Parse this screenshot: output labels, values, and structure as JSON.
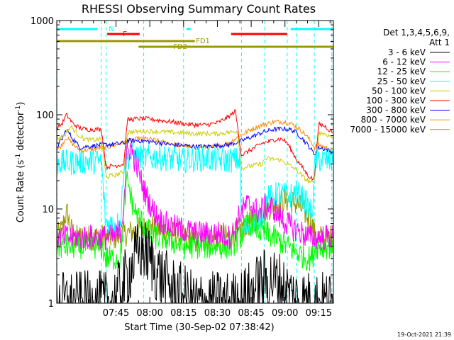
{
  "chart_data": {
    "type": "line",
    "title": "RHESSI Observing Summary Count Rates",
    "xlabel": "Start Time (30-Sep-02 07:38:42)",
    "ylabel_main": "Count Rate (s",
    "ylabel_exp1": "-1",
    "ylabel_mid": " detector",
    "ylabel_exp2": "-1",
    "ylabel_end": ")",
    "yscale": "log",
    "ylim": [
      1,
      1000
    ],
    "xlim_minutes": [
      -21.3,
      101.5
    ],
    "x_ticks": [
      "07:45",
      "08:00",
      "08:15",
      "08:30",
      "08:45",
      "09:00",
      "09:15"
    ],
    "y_ticks": [
      "1",
      "10",
      "100",
      "1000"
    ],
    "legend_header": [
      "Det 1,3,4,5,6,9,",
      "Att 1"
    ],
    "legend_position": "right",
    "timestamp": "19-Oct-2021 21:39",
    "flags": [
      {
        "label": "N",
        "color": "#00ffff",
        "segments": [
          [
            -21.3,
            -3.2
          ],
          [
            36.3,
            38.1
          ],
          [
            82.5,
            101.5
          ]
        ]
      },
      {
        "label": "F",
        "color": "#ff0000",
        "segments": [
          [
            1.1,
            15.5
          ],
          [
            56.1,
            81.0
          ]
        ]
      },
      {
        "label": "FD1",
        "color": "#999900",
        "segments": [
          [
            -21.3,
            40.0
          ]
        ]
      },
      {
        "label": "FD2",
        "color": "#999900",
        "segments": [
          [
            15.0,
            101.5
          ]
        ]
      }
    ],
    "vlines_minutes": [
      -21.2,
      -1.5,
      0.6,
      17.3,
      35.0,
      60.7,
      71.0,
      81.0,
      85.1,
      93.0,
      100.8
    ],
    "series": [
      {
        "name": "3 - 6 keV",
        "color": "#000000",
        "style": "noise",
        "x": [
          -21.3,
          -1.2,
          0.4,
          2.0,
          5.0,
          8.0,
          11.0,
          14.0,
          17.0,
          20.0,
          23.0,
          26.0,
          29.0,
          32.0,
          35.0,
          37.0,
          40.0,
          44.0,
          48.0,
          52.0,
          56.0,
          60.0,
          63.0,
          66.0,
          70.0,
          74.0,
          78.0,
          81.0,
          85.0,
          92.0,
          93.5,
          97.0,
          100.0
        ],
        "values": [
          1,
          1,
          1,
          1,
          1.2,
          1.5,
          2.2,
          3.2,
          3.8,
          3.0,
          2.2,
          1.8,
          1.5,
          1.3,
          1.2,
          1.1,
          1.0,
          1.0,
          1.0,
          1.0,
          1.0,
          1.0,
          1.2,
          1.4,
          1.7,
          1.8,
          1.6,
          1.3,
          1.1,
          1.0,
          1.0,
          1.0,
          1.0
        ]
      },
      {
        "name": "6 - 12 keV",
        "color": "#ff00ff",
        "style": "noise",
        "x": [
          -21.3,
          -18.0,
          -14.0,
          -10.0,
          -6.0,
          -3.0,
          -1.2,
          0.4,
          2.0,
          5.0,
          7.0,
          8.0,
          9.0,
          10.0,
          11.5,
          13.0,
          15.0,
          17.0,
          19.0,
          21.0,
          23.0,
          25.0,
          27.0,
          30.0,
          35.0,
          40.0,
          44.0,
          48.0,
          52.0,
          55.0,
          58.0,
          60.0,
          63.0,
          66.0,
          68.0,
          70.0,
          72.0,
          75.0,
          78.0,
          81.0,
          85.0,
          88.0,
          91.0,
          92.0,
          93.5,
          97.0,
          100.0
        ],
        "values": [
          5,
          5,
          5,
          5,
          5,
          5,
          5,
          5,
          5,
          5,
          6,
          9,
          20,
          40,
          45,
          35,
          25,
          17,
          13,
          10,
          8.5,
          7.5,
          7,
          6.5,
          6,
          5.5,
          5.5,
          5.5,
          5.5,
          5,
          6,
          9,
          11,
          11,
          9,
          10,
          11,
          10,
          8,
          7,
          6,
          5.5,
          5,
          5,
          5,
          5,
          5
        ]
      },
      {
        "name": "12 - 25 keV",
        "color": "#00ff00",
        "style": "noise",
        "x": [
          -21.3,
          -10.0,
          -3.0,
          -1.2,
          0.4,
          4.0,
          7.0,
          8.0,
          9.0,
          10.0,
          11.0,
          12.0,
          13.0,
          15.0,
          17.0,
          19.0,
          21.0,
          23.0,
          26.0,
          30.0,
          35.0,
          40.0,
          46.0,
          52.0,
          56.0,
          58.0,
          60.0,
          62.0,
          64.0,
          66.0,
          68.0,
          70.0,
          72.0,
          75.0,
          78.0,
          81.0,
          85.0,
          90.0,
          92.0,
          93.5,
          97.0,
          100.0
        ],
        "values": [
          4,
          4,
          4,
          4,
          3,
          3,
          3,
          6,
          13,
          20,
          16,
          12,
          10,
          8,
          7,
          6,
          5,
          5,
          5,
          4.5,
          4,
          4,
          4,
          4,
          4,
          4.5,
          5,
          6,
          7,
          7.5,
          6,
          5.5,
          5.5,
          5,
          4.5,
          4,
          3.5,
          3,
          3,
          4,
          4,
          4
        ]
      },
      {
        "name": "25 - 50 keV",
        "color": "#00ffff",
        "style": "noise",
        "x": [
          -21.3,
          -15.0,
          -10.0,
          -5.0,
          -1.5,
          0.4,
          5.0,
          7.0,
          8.5,
          9.5,
          12.0,
          15.0,
          20.0,
          25.0,
          30.0,
          35.0,
          40.0,
          45.0,
          50.0,
          55.0,
          58.0,
          60.0,
          60.8,
          62.0,
          65.0,
          68.0,
          71.0,
          72.0,
          75.0,
          77.0,
          80.0,
          83.0,
          85.0,
          88.0,
          92.0,
          93.5,
          97.0,
          100.0
        ],
        "values": [
          31,
          31,
          32,
          32,
          32,
          7,
          7,
          7,
          30,
          34,
          37,
          36,
          35,
          35,
          34,
          33,
          34,
          34,
          33,
          33,
          33,
          33,
          5,
          6,
          7,
          8,
          9,
          13,
          13.5,
          15,
          14,
          14,
          15,
          13,
          9,
          34,
          33,
          32
        ]
      },
      {
        "name": "50 - 100 keV",
        "color": "#cccc00",
        "style": "smooth",
        "x": [
          -21.3,
          -18.0,
          -15.0,
          -12.0,
          -9.0,
          -5.0,
          -1.5,
          0.6,
          5.0,
          8.5,
          10.0,
          17.0,
          20.0,
          25.0,
          30.0,
          35.0,
          40.0,
          45.0,
          50.0,
          55.0,
          59.0,
          60.7,
          63.0,
          66.0,
          70.0,
          71.0,
          74.0,
          78.0,
          81.0,
          85.0,
          88.0,
          90.0,
          92.0,
          93.0,
          95.0,
          98.0,
          101.0
        ],
        "values": [
          55,
          60,
          75,
          62,
          55,
          54,
          55,
          22,
          23,
          25,
          65,
          67,
          67,
          66,
          65,
          64,
          63,
          63,
          63,
          65,
          67,
          27,
          28,
          29,
          30,
          34,
          34,
          33,
          30,
          26,
          22,
          20,
          19,
          19,
          65,
          62,
          58
        ]
      },
      {
        "name": "100 - 300 keV",
        "color": "#ff0000",
        "style": "smooth",
        "x": [
          -21.3,
          -19.0,
          -17.0,
          -14.0,
          -11.0,
          -8.0,
          -4.0,
          -1.5,
          0.6,
          5.0,
          8.5,
          10.0,
          15.0,
          20.0,
          25.0,
          30.0,
          35.0,
          40.0,
          45.0,
          50.0,
          55.0,
          58.0,
          60.7,
          63.0,
          66.0,
          70.0,
          73.0,
          76.0,
          79.0,
          81.0,
          85.0,
          88.0,
          90.0,
          92.0,
          93.0,
          95.0,
          98.0,
          101.0
        ],
        "values": [
          72,
          80,
          100,
          80,
          72,
          70,
          70,
          70,
          28,
          29,
          30,
          88,
          91,
          90,
          87,
          84,
          80,
          78,
          78,
          82,
          95,
          110,
          37,
          40,
          44,
          50,
          52,
          55,
          55,
          50,
          34,
          27,
          23,
          21,
          21,
          80,
          75,
          65
        ]
      },
      {
        "name": "300 - 800 keV",
        "color": "#0000ff",
        "style": "smooth",
        "x": [
          -21.3,
          -19.0,
          -17.0,
          -14.0,
          -11.0,
          -8.0,
          -4.0,
          -1.5,
          0.6,
          5.0,
          8.5,
          10.0,
          15.0,
          20.0,
          25.0,
          30.0,
          35.0,
          40.0,
          45.0,
          50.0,
          55.0,
          60.0,
          65.0,
          70.0,
          75.0,
          80.0,
          83.0,
          85.0,
          88.0,
          91.0,
          93.0,
          95.0,
          98.0,
          101.0
        ],
        "values": [
          45,
          55,
          70,
          55,
          45,
          46,
          47,
          48,
          48,
          49,
          50,
          53,
          53,
          52,
          50,
          48,
          47,
          46,
          46,
          47,
          48,
          52,
          58,
          65,
          70,
          71,
          69,
          65,
          55,
          45,
          38,
          45,
          43,
          40
        ]
      },
      {
        "name": "800 - 7000 keV",
        "color": "#ff8800",
        "style": "smooth",
        "x": [
          -21.3,
          -19.0,
          -17.0,
          -14.0,
          -11.0,
          -8.0,
          -4.0,
          -1.5,
          0.6,
          5.0,
          10.0,
          15.0,
          20.0,
          25.0,
          30.0,
          35.0,
          40.0,
          45.0,
          50.0,
          55.0,
          60.0,
          65.0,
          70.0,
          75.0,
          80.0,
          83.0,
          86.0,
          89.0,
          92.0,
          93.0,
          95.0,
          98.0,
          101.0
        ],
        "values": [
          42,
          48,
          58,
          48,
          42,
          42,
          43,
          45,
          45,
          48,
          52,
          56,
          55,
          52,
          49,
          47,
          45,
          45,
          46,
          50,
          60,
          70,
          78,
          84,
          84,
          80,
          72,
          62,
          50,
          45,
          48,
          45,
          42
        ]
      },
      {
        "name": "7000 - 15000 keV",
        "color": "#999900",
        "style": "noise",
        "x": [
          -21.3,
          -19.0,
          -17.5,
          -16.5,
          -15.5,
          -14.0,
          -10.0,
          -5.0,
          -1.5,
          0.6,
          5.0,
          10.0,
          15.0,
          20.0,
          25.0,
          30.0,
          35.0,
          40.0,
          45.0,
          50.0,
          55.0,
          58.0,
          61.0,
          64.0,
          67.0,
          70.0,
          72.0,
          75.0,
          78.0,
          80.0,
          83.0,
          86.0,
          89.0,
          92.0,
          93.5,
          97.0,
          100.0
        ],
        "values": [
          5,
          6,
          8.5,
          9,
          7,
          5,
          5,
          5,
          5,
          5,
          5,
          5.5,
          6,
          6.5,
          6,
          5.5,
          5,
          4.5,
          4.5,
          5,
          5,
          5.5,
          6.5,
          7,
          8,
          9,
          10,
          11,
          12,
          12.5,
          12,
          11,
          9,
          7,
          5,
          5,
          5
        ]
      }
    ]
  }
}
